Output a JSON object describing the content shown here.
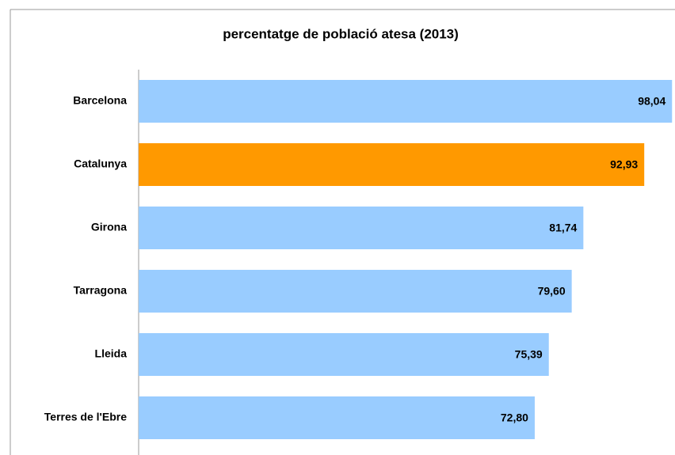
{
  "chart_data": {
    "type": "hbar",
    "title": "percentatge de població atesa (2013)",
    "categories": [
      "Barcelona",
      "Catalunya",
      "Girona",
      "Tarragona",
      "Lleida",
      "Terres de l'Ebre"
    ],
    "values": [
      98.04,
      92.93,
      81.74,
      79.6,
      75.39,
      72.8
    ],
    "value_labels": [
      "98,04",
      "92,93",
      "81,74",
      "79,60",
      "75,39",
      "72,80"
    ],
    "colors": [
      "#99ccff",
      "#ff9900",
      "#99ccff",
      "#99ccff",
      "#99ccff",
      "#99ccff"
    ],
    "xlim": [
      0,
      98
    ]
  }
}
